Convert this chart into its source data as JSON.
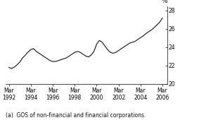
{
  "ylabel": "%",
  "xlim": [
    1991.9,
    2006.6
  ],
  "ylim": [
    20,
    28.5
  ],
  "yticks": [
    20,
    22,
    24,
    26,
    28
  ],
  "xtick_years": [
    1992,
    1994,
    1996,
    1998,
    2000,
    2002,
    2004,
    2006
  ],
  "footnote": "(a)  GOS of non-financial and financial corporations.",
  "line_color": "#111111",
  "line_width": 0.8,
  "background_color": "#ffffff",
  "data": {
    "dates": [
      1992.17,
      1992.42,
      1992.67,
      1992.92,
      1993.17,
      1993.42,
      1993.67,
      1993.92,
      1994.17,
      1994.42,
      1994.67,
      1994.92,
      1995.17,
      1995.42,
      1995.67,
      1995.92,
      1996.17,
      1996.42,
      1996.67,
      1996.92,
      1997.17,
      1997.42,
      1997.67,
      1997.92,
      1998.17,
      1998.42,
      1998.67,
      1998.92,
      1999.17,
      1999.42,
      1999.67,
      1999.92,
      2000.17,
      2000.42,
      2000.67,
      2000.92,
      2001.17,
      2001.42,
      2001.67,
      2001.92,
      2002.17,
      2002.42,
      2002.67,
      2002.92,
      2003.17,
      2003.42,
      2003.67,
      2003.92,
      2004.17,
      2004.42,
      2004.67,
      2004.92,
      2005.17,
      2005.42,
      2005.67,
      2005.92,
      2006.17
    ],
    "values": [
      21.8,
      21.7,
      21.85,
      22.1,
      22.4,
      22.85,
      23.15,
      23.5,
      23.75,
      23.85,
      23.55,
      23.35,
      23.15,
      22.95,
      22.75,
      22.55,
      22.45,
      22.45,
      22.55,
      22.65,
      22.75,
      22.85,
      23.05,
      23.25,
      23.45,
      23.55,
      23.45,
      23.25,
      23.05,
      22.95,
      23.15,
      23.55,
      24.35,
      24.75,
      24.55,
      24.15,
      23.75,
      23.45,
      23.35,
      23.45,
      23.65,
      23.85,
      24.05,
      24.25,
      24.45,
      24.55,
      24.65,
      24.85,
      25.05,
      25.25,
      25.5,
      25.7,
      25.9,
      26.15,
      26.45,
      26.75,
      27.2
    ]
  },
  "font_size_tick": 5.5,
  "font_size_footnote": 5.5,
  "font_size_ylabel": 6.5
}
